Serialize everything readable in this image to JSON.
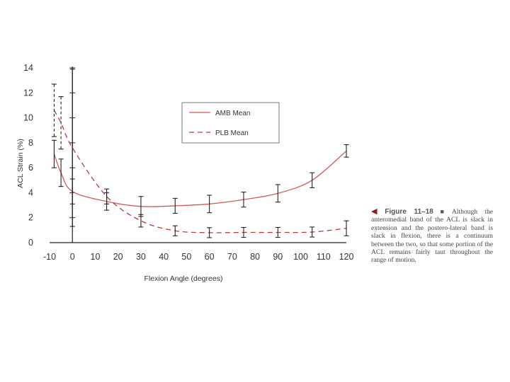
{
  "chart_data": {
    "type": "line",
    "title": "",
    "xlabel": "Flexion Angle (degrees)",
    "ylabel": "ACL Strain (%)",
    "x_ticks": [
      -10,
      0,
      10,
      20,
      30,
      40,
      50,
      60,
      70,
      80,
      90,
      100,
      110,
      120
    ],
    "y_ticks": [
      0,
      2,
      4,
      6,
      8,
      10,
      12,
      14
    ],
    "xlim": [
      -10,
      120
    ],
    "ylim": [
      0,
      14
    ],
    "legend_position": "top-center",
    "colors": {
      "amb": "#d05a5a",
      "plb": "#b83a3a",
      "error_bar": "#222222",
      "axis": "#222222"
    },
    "series": [
      {
        "name": "AMB Mean",
        "style": "solid",
        "x": [
          -8,
          -5,
          0,
          15,
          30,
          45,
          60,
          75,
          90,
          105,
          120
        ],
        "y": [
          7.1,
          5.6,
          4.1,
          3.3,
          2.9,
          2.95,
          3.1,
          3.45,
          3.95,
          5.0,
          7.35
        ],
        "error": [
          1.1,
          1.1,
          1.0,
          0.7,
          0.8,
          0.6,
          0.7,
          0.6,
          0.7,
          0.6,
          0.5
        ]
      },
      {
        "name": "PLB Mean",
        "style": "dashed",
        "x": [
          -8,
          -5,
          0,
          15,
          30,
          45,
          60,
          75,
          90,
          105,
          120
        ],
        "y": [
          10.6,
          9.6,
          7.6,
          3.7,
          1.75,
          0.95,
          0.8,
          0.82,
          0.82,
          0.85,
          1.15
        ],
        "error": [
          2.1,
          2.1,
          6.3,
          0.6,
          0.5,
          0.4,
          0.4,
          0.4,
          0.4,
          0.4,
          0.6
        ]
      }
    ]
  },
  "caption": {
    "label": "Figure  11–18",
    "separator": "■",
    "text": "Although the anteromedial band of the ACL is slack in extension and the postero-lateral band is slack in flexion, there is a continuum between the two, so that some portion of the ACL remains fairly taut throughout the range of motion."
  }
}
